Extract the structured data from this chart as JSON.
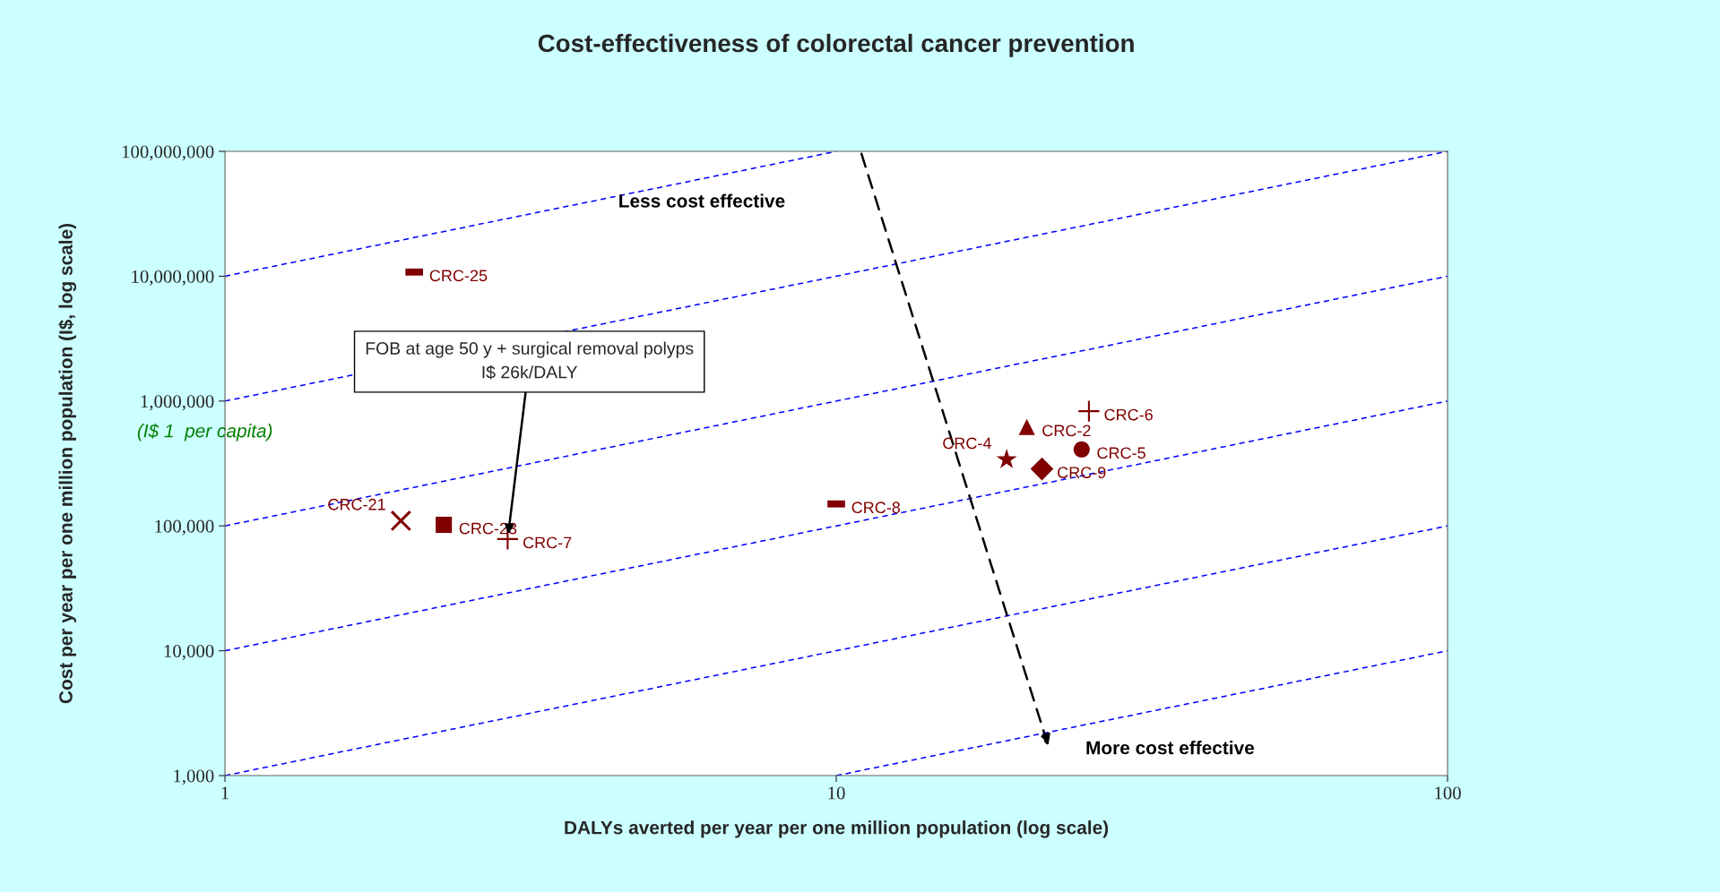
{
  "chart_data": {
    "type": "scatter",
    "title": "Cost-effectiveness of colorectal cancer prevention",
    "xlabel": "DALYs averted per year per one million population (log scale)",
    "ylabel": "Cost per year per one million population (I$, log scale)",
    "log": "xy",
    "grid": false,
    "xlim": [
      1,
      100
    ],
    "xticks": [
      1,
      10,
      100
    ],
    "ylim": [
      1000,
      100000000
    ],
    "yticks": [
      {
        "value": 1000,
        "label": "1,000"
      },
      {
        "value": 10000,
        "label": "10,000"
      },
      {
        "value": 100000,
        "label": "100,000"
      },
      {
        "value": 1000000,
        "label": "1,000,000"
      },
      {
        "value": 10000000,
        "label": "10,000,000"
      },
      {
        "value": 100000000,
        "label": "100,000,000"
      }
    ],
    "series": [
      {
        "type": "line",
        "color": "#0000ff",
        "line_style": "dashed",
        "marker": "none",
        "x": [
          1,
          10
        ],
        "values": [
          10000000,
          100000000
        ]
      },
      {
        "type": "line",
        "color": "#0000ff",
        "line_style": "dashed",
        "marker": "none",
        "x": [
          1,
          100
        ],
        "values": [
          1000000,
          100000000
        ]
      },
      {
        "type": "line",
        "color": "#0000ff",
        "line_style": "dashed",
        "marker": "none",
        "x": [
          1,
          100
        ],
        "values": [
          100000,
          10000000
        ]
      },
      {
        "type": "line",
        "color": "#0000ff",
        "line_style": "dashed",
        "marker": "none",
        "x": [
          1,
          100
        ],
        "values": [
          10000,
          1000000
        ]
      },
      {
        "type": "line",
        "color": "#0000ff",
        "line_style": "dashed",
        "marker": "none",
        "x": [
          1,
          100
        ],
        "values": [
          1000,
          100000
        ]
      },
      {
        "type": "line",
        "color": "#0000ff",
        "line_style": "dashed",
        "marker": "none",
        "x": [
          10,
          100
        ],
        "values": [
          1000,
          10000
        ]
      },
      {
        "name": "CRC-25",
        "color": "#800000",
        "x": [
          2.04
        ],
        "values": [
          10800000
        ]
      },
      {
        "name": "CRC-21",
        "color": "#800000",
        "marker": "x",
        "x": [
          1.94
        ],
        "values": [
          110000
        ]
      },
      {
        "name": "CRC-23",
        "color": "#800000",
        "marker": "square",
        "x": [
          2.28
        ],
        "values": [
          102000
        ]
      },
      {
        "name": "CRC-7",
        "color": "#800000",
        "marker": "cross",
        "x": [
          2.9
        ],
        "values": [
          78500
        ]
      },
      {
        "name": "CRC-8",
        "color": "#800000",
        "x": [
          10.0
        ],
        "values": [
          150000
        ]
      },
      {
        "name": "CRC-2",
        "color": "#800000",
        "marker": "triangle",
        "x": [
          20.5
        ],
        "values": [
          620000
        ]
      },
      {
        "name": "CRC-6",
        "color": "#800000",
        "marker": "cross",
        "x": [
          25.9
        ],
        "values": [
          830000
        ]
      },
      {
        "name": "CRC-4",
        "color": "#800000",
        "marker": "star",
        "x": [
          19.0
        ],
        "values": [
          340000
        ]
      },
      {
        "name": "CRC-5",
        "color": "#800000",
        "marker": "circle",
        "x": [
          25.2
        ],
        "values": [
          410000
        ]
      },
      {
        "name": "CRC-9",
        "color": "#800000",
        "marker": "diamond",
        "x": [
          21.7
        ],
        "values": [
          286000
        ]
      }
    ],
    "annotations": [
      "Less cost effective",
      "More cost effective",
      "(I$ 1  per capita)",
      {
        "text": "FOB at age 50 y + surgical removal polyps\nI$ 26k/DALY",
        "x": 2.9,
        "y": 78500
      }
    ]
  }
}
